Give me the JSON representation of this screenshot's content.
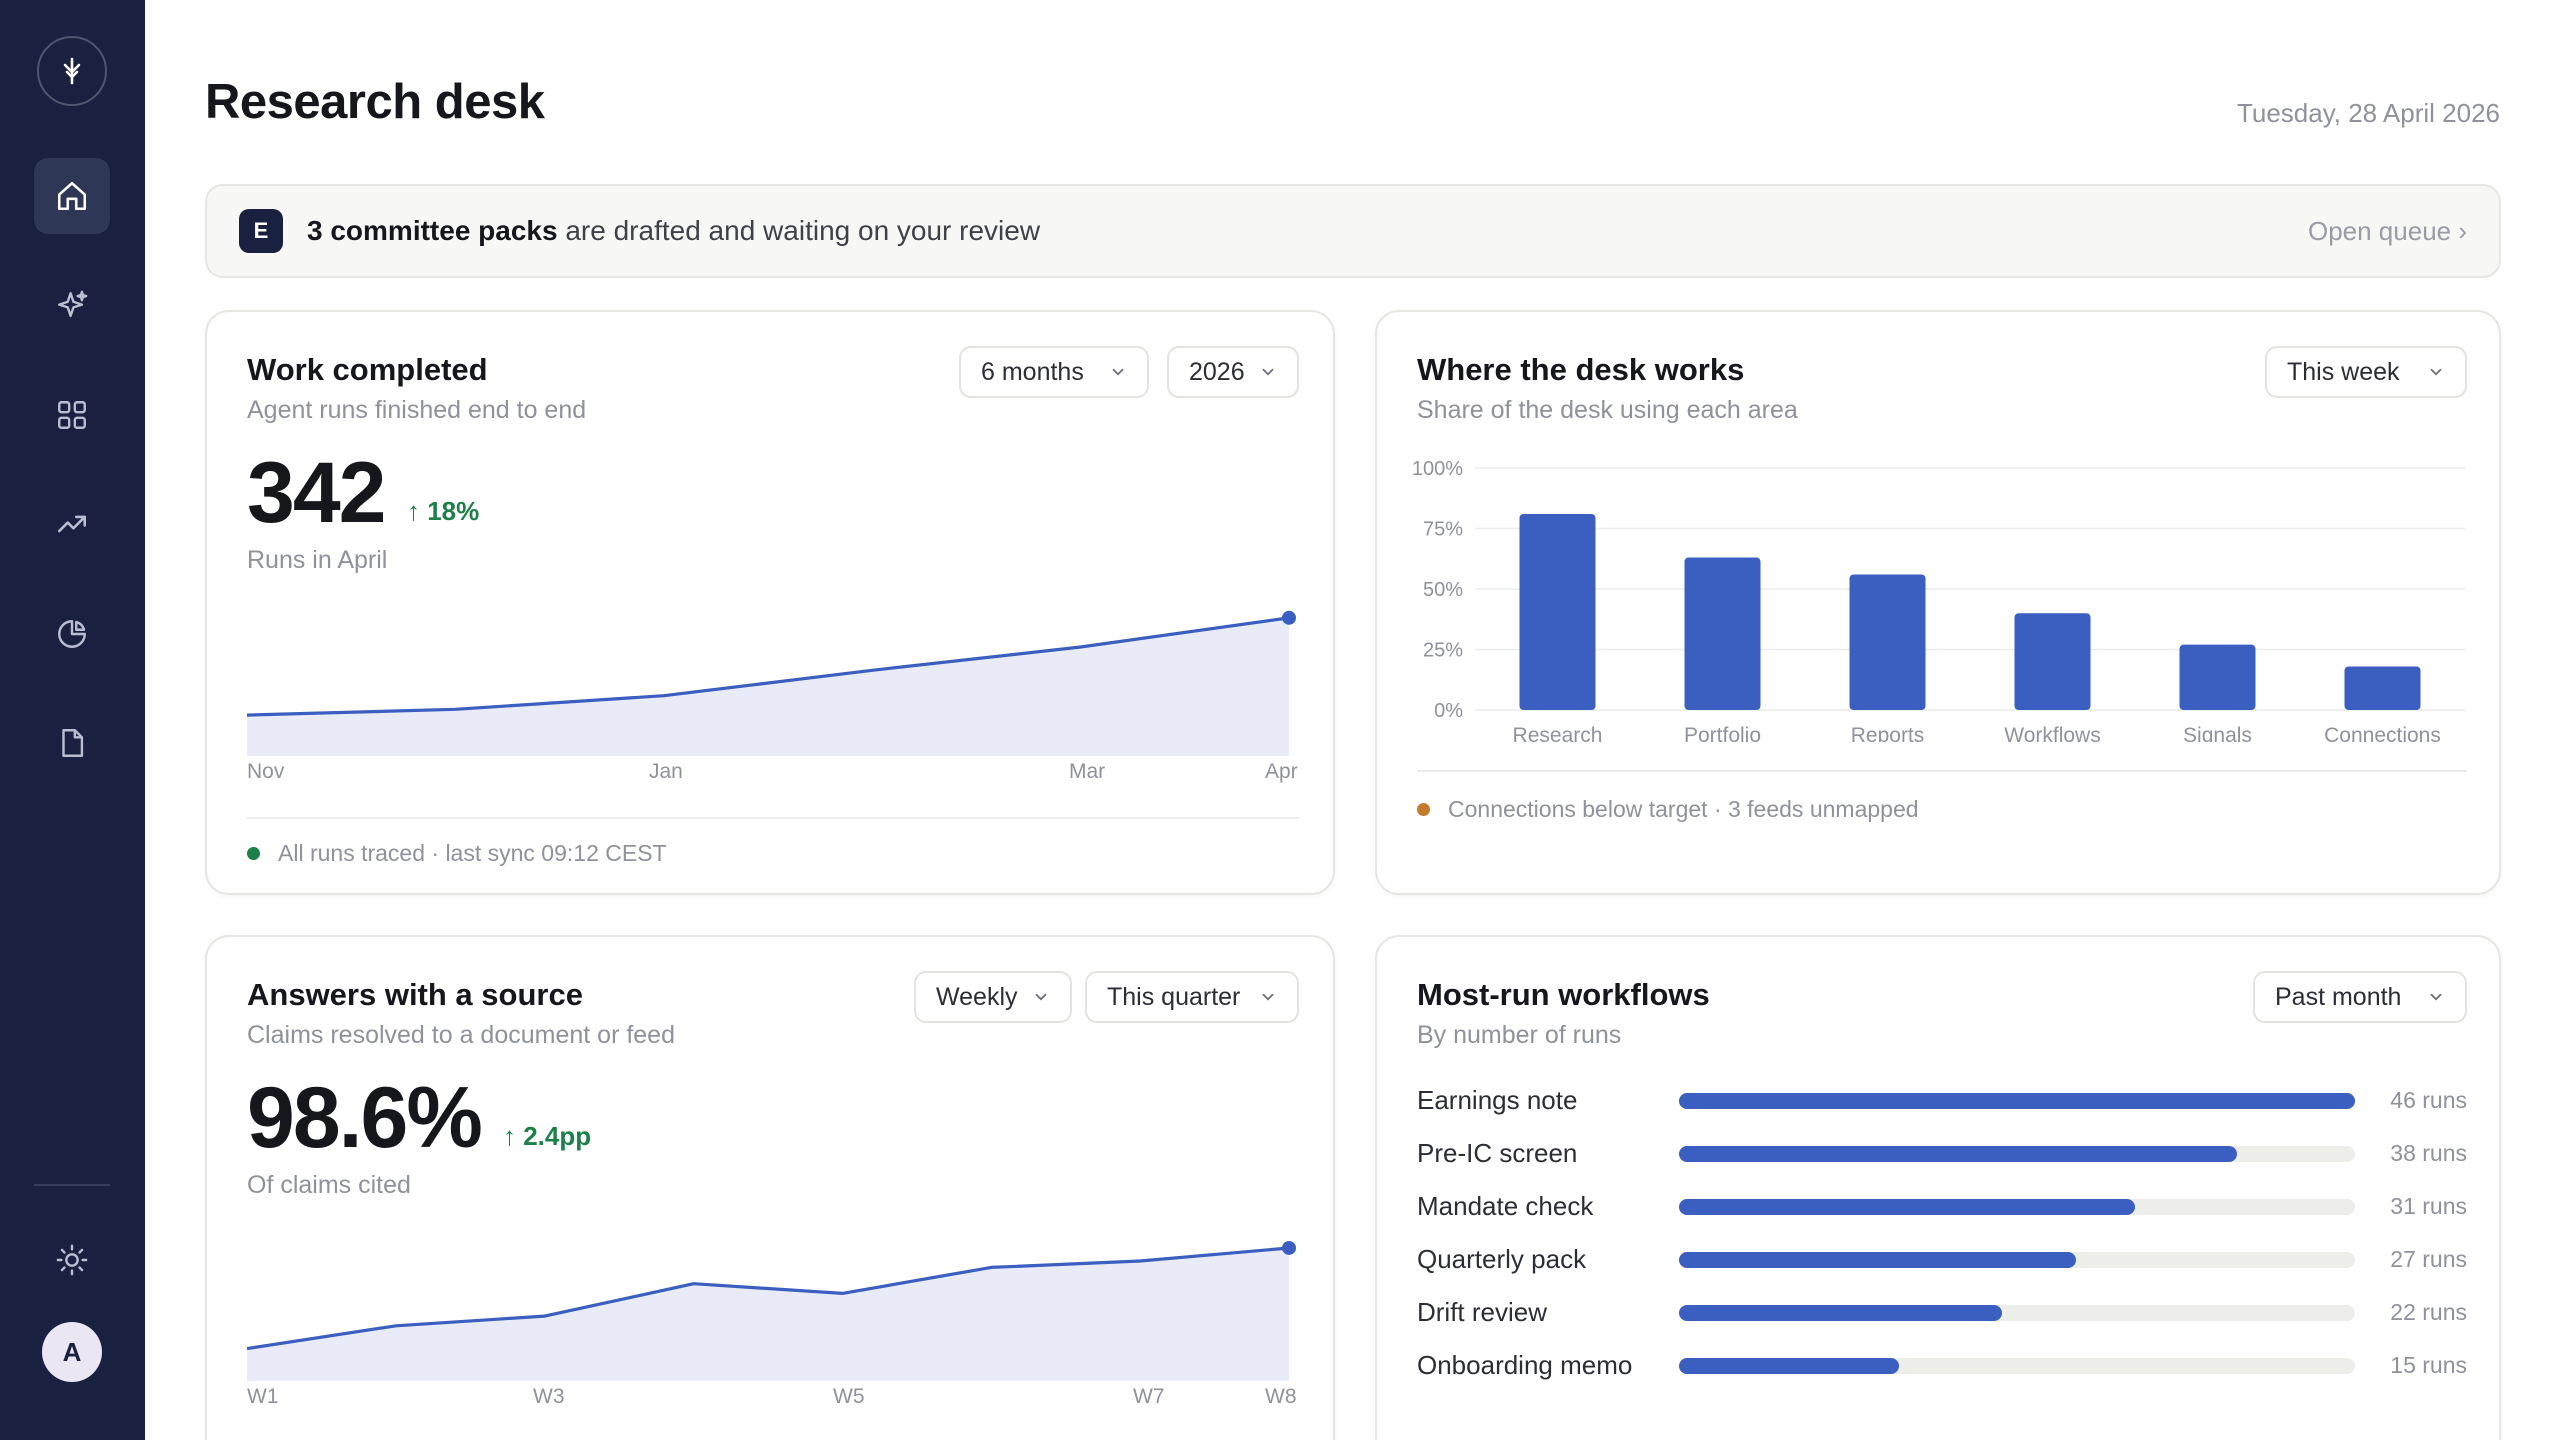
{
  "header": {
    "title": "Research desk",
    "date": "Tuesday, 28 April 2026"
  },
  "sidebar": {
    "icons": [
      "logo-icon",
      "home-icon",
      "sparkle-icon",
      "grid-icon",
      "trend-icon",
      "pie-icon",
      "document-icon",
      "settings-icon"
    ],
    "active": "home-icon",
    "avatar_initial": "A"
  },
  "banner": {
    "badge": "E",
    "count_text": "3 committee packs",
    "rest_text": " are drafted and waiting on your review",
    "link": "Open queue ›"
  },
  "work_completed": {
    "title": "Work completed",
    "subtitle": "Agent runs finished end to end",
    "range_select": "6 months",
    "year_select": "2026",
    "value": "342",
    "delta": "↑ 18%",
    "caption": "Runs in April",
    "x_ticks": [
      "Nov",
      "Jan",
      "Mar",
      "Apr"
    ],
    "footnote": "All runs traced · last sync 09:12 CEST",
    "status_color": "#1d8048"
  },
  "desk_areas": {
    "title": "Where the desk works",
    "subtitle": "Share of the desk using each area",
    "period_select": "This week",
    "y_ticks": [
      "100%",
      "75%",
      "50%",
      "25%",
      "0%"
    ],
    "footnote": "Connections below target · 3 feeds unmapped",
    "warn_color": "#c27c2c"
  },
  "answers_source": {
    "title": "Answers with a source",
    "subtitle": "Claims resolved to a document or feed",
    "freq_select": "Weekly",
    "period_select": "This quarter",
    "value": "98.6%",
    "delta": "↑ 2.4pp",
    "caption": "Of claims cited",
    "x_ticks": [
      "W1",
      "W3",
      "W5",
      "W7",
      "W8"
    ]
  },
  "workflows": {
    "title": "Most-run workflows",
    "subtitle": "By number of runs",
    "period_select": "Past month",
    "max_runs": 46,
    "items": [
      {
        "name": "Earnings note",
        "runs": 46,
        "label": "46 runs"
      },
      {
        "name": "Pre-IC screen",
        "runs": 38,
        "label": "38 runs"
      },
      {
        "name": "Mandate check",
        "runs": 31,
        "label": "31 runs"
      },
      {
        "name": "Quarterly pack",
        "runs": 27,
        "label": "27 runs"
      },
      {
        "name": "Drift review",
        "runs": 22,
        "label": "22 runs"
      },
      {
        "name": "Onboarding memo",
        "runs": 15,
        "label": "15 runs"
      }
    ]
  },
  "accent_color": "#3b5fc0",
  "chart_data": [
    {
      "type": "area",
      "title": "Work completed",
      "x": [
        "Nov",
        "Dec",
        "Jan",
        "Feb",
        "Mar",
        "Apr"
      ],
      "values": [
        242,
        248,
        262,
        288,
        312,
        342
      ],
      "ylim": [
        200,
        350
      ]
    },
    {
      "type": "bar",
      "title": "Where the desk works",
      "categories": [
        "Research",
        "Portfolio",
        "Reports",
        "Workflows",
        "Signals",
        "Connections"
      ],
      "values": [
        81,
        63,
        56,
        40,
        27,
        18
      ],
      "ylim": [
        0,
        100
      ]
    },
    {
      "type": "area",
      "title": "Answers with a source",
      "x": [
        "W1",
        "W2",
        "W3",
        "W4",
        "W5",
        "W6",
        "W7",
        "W8"
      ],
      "values": [
        95.5,
        96.2,
        96.5,
        97.5,
        97.2,
        98.0,
        98.2,
        98.6
      ],
      "ylim": [
        94.5,
        99
      ]
    }
  ]
}
